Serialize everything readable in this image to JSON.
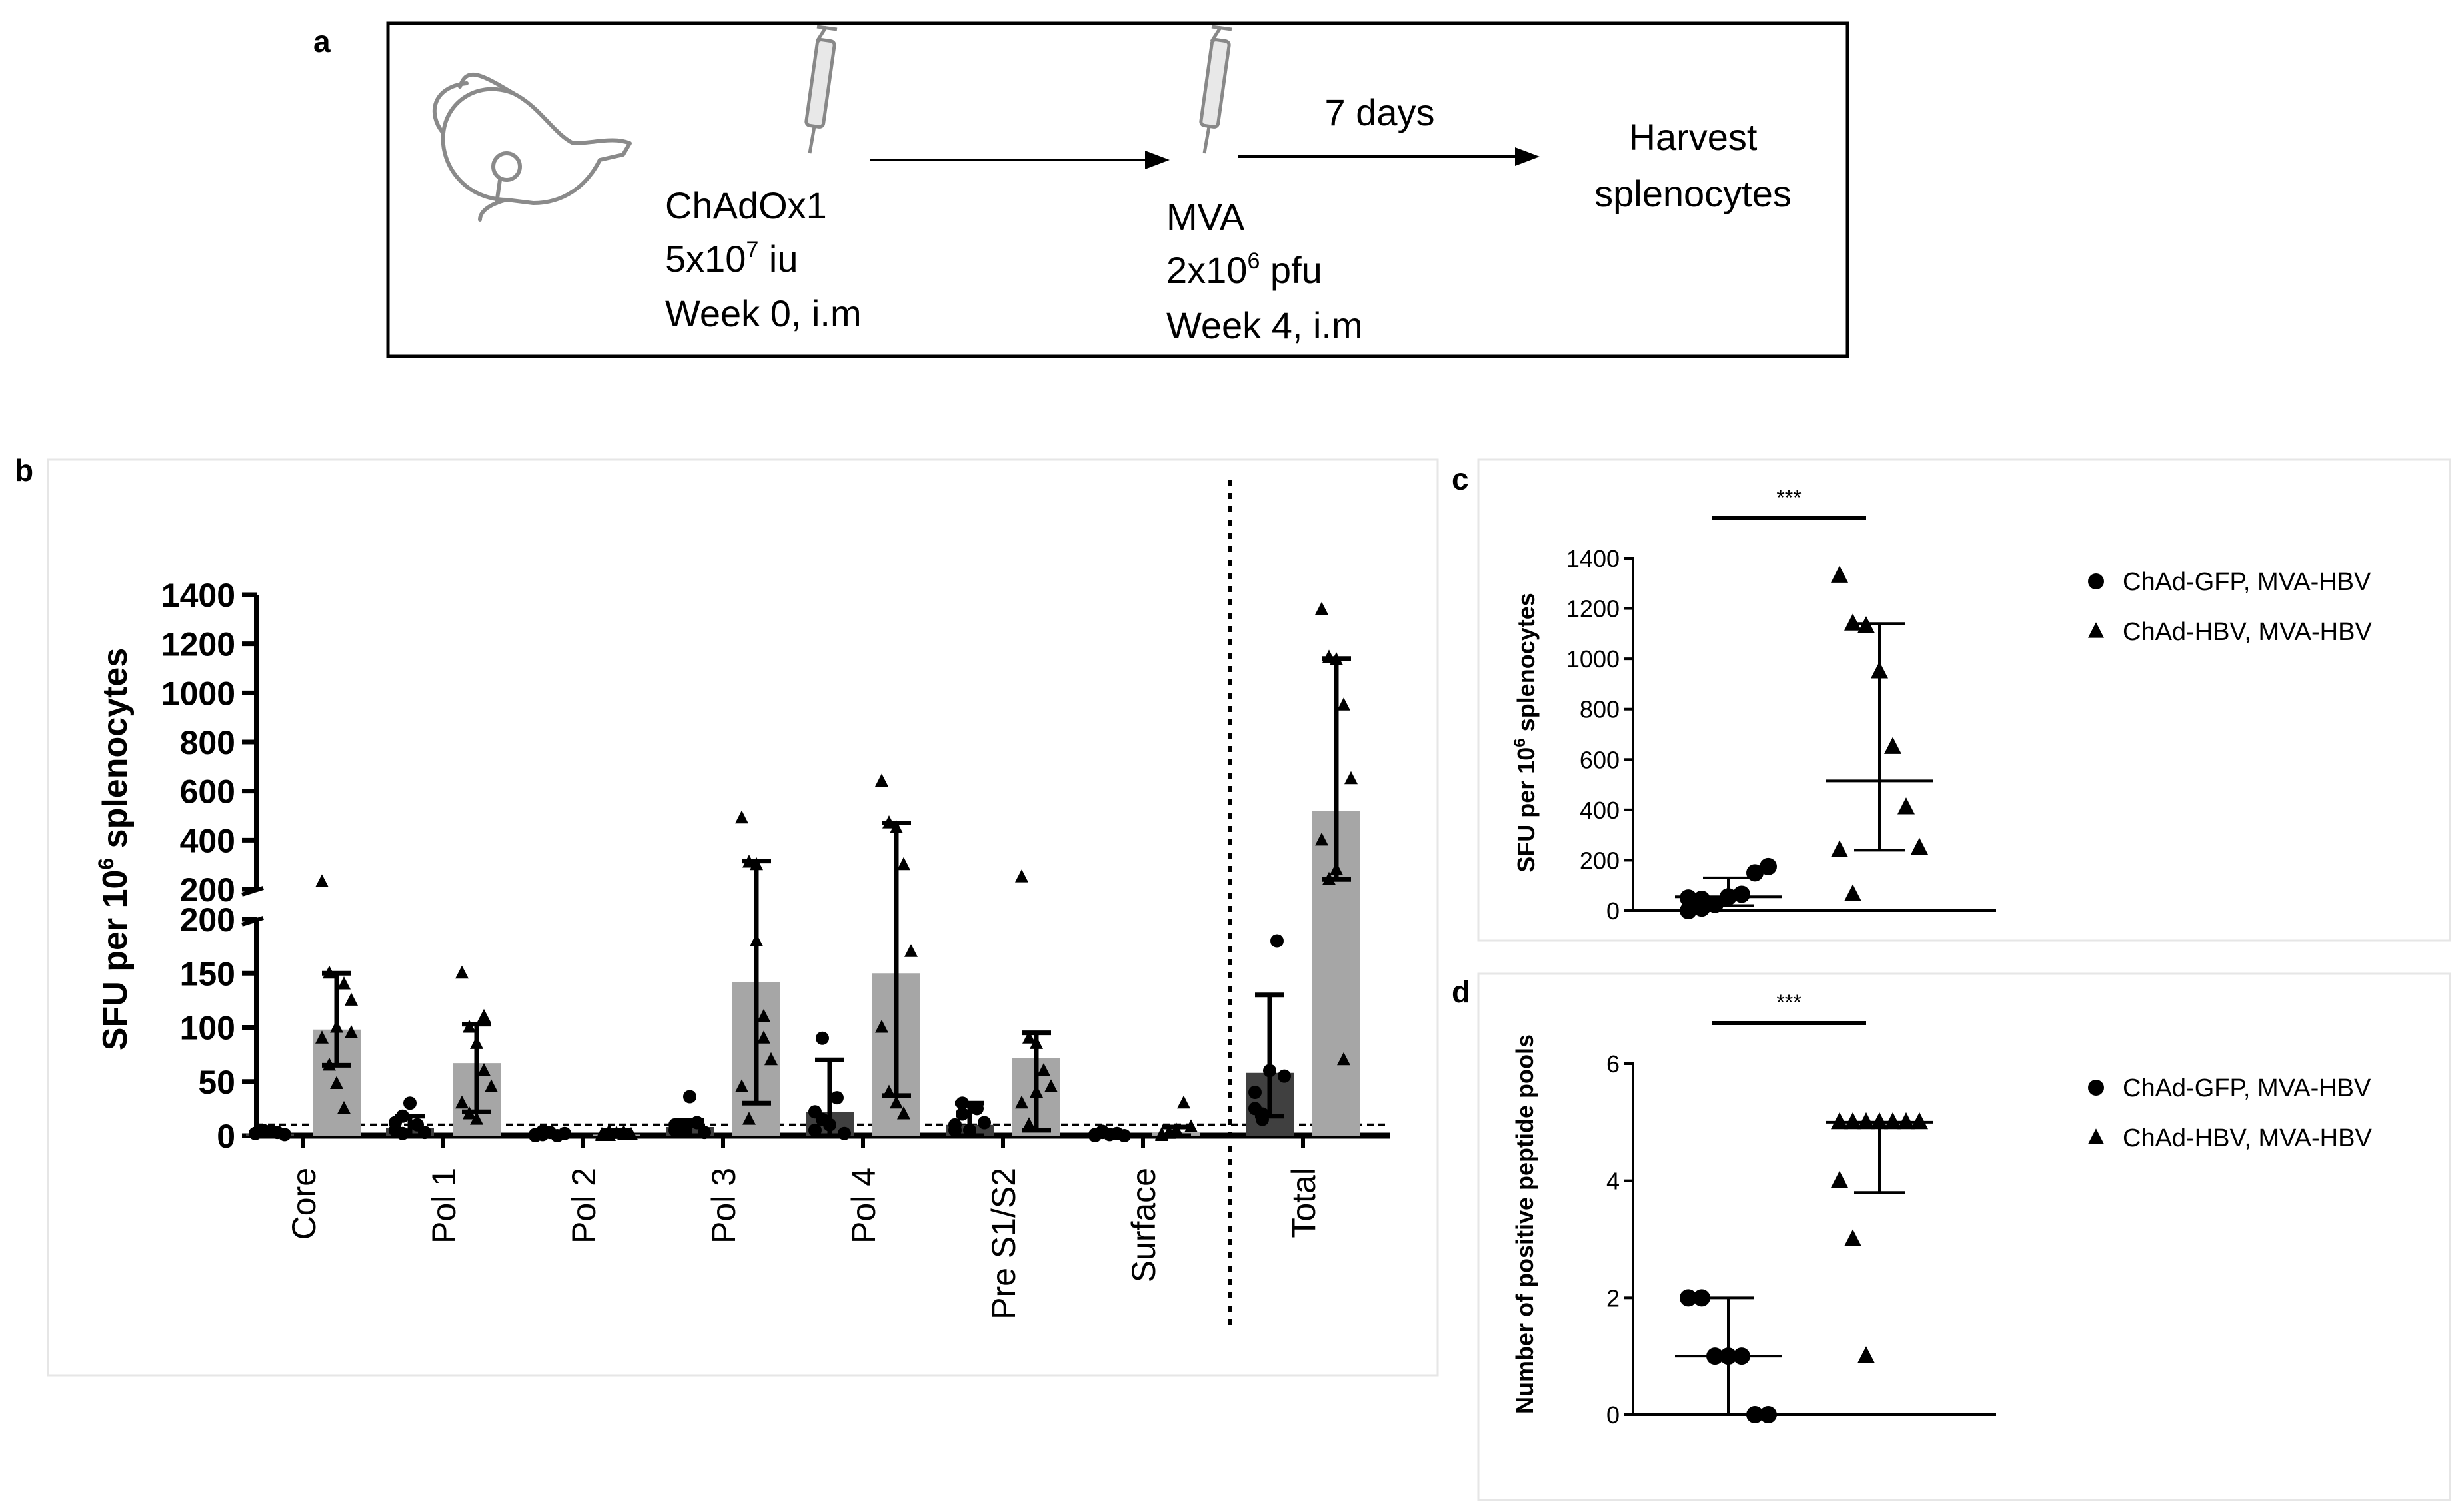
{
  "panel_a": {
    "letter": "a",
    "prime": {
      "vector": "ChAdOx1",
      "dose_base": "5x10",
      "dose_exp": "7",
      "dose_unit": " iu",
      "timing": "Week 0, i.m"
    },
    "boost": {
      "vector": "MVA",
      "dose_base": "2x10",
      "dose_exp": "6",
      "dose_unit": " pfu",
      "timing": "Week 4, i.m"
    },
    "interval": "7 days",
    "endpoint_line1": "Harvest",
    "endpoint_line2": "splenocytes"
  },
  "chart_data": [
    {
      "id": "b",
      "letter": "b",
      "type": "bar",
      "ylabel_pre": "SFU per 10",
      "ylabel_exp": "6",
      "ylabel_post": " splenocytes",
      "y_axis_broken": true,
      "ylim_lower": [
        0,
        200
      ],
      "ylim_upper": [
        200,
        1400
      ],
      "yticks_lower": [
        0,
        50,
        100,
        150,
        200
      ],
      "yticks_upper": [
        200,
        400,
        600,
        800,
        1000,
        1200,
        1400
      ],
      "threshold": 10,
      "categories": [
        "Core",
        "Pol 1",
        "Pol 2",
        "Pol 3",
        "Pol 4",
        "Pre S1/S2",
        "Surface",
        "Total"
      ],
      "series": [
        {
          "name": "ChAd-GFP, MVA-HBV",
          "marker": "circle",
          "color": "#404040",
          "bars": [
            2,
            7,
            0,
            8,
            22,
            10,
            0,
            58
          ],
          "err_low": [
            0,
            0,
            0,
            0,
            0,
            0,
            0,
            18
          ],
          "err_high": [
            5,
            18,
            3,
            14,
            70,
            30,
            3,
            130
          ],
          "points": [
            [
              2,
              5,
              4,
              3,
              1,
              2,
              5
            ],
            [
              5,
              18,
              30,
              10,
              3,
              12,
              2
            ],
            [
              0,
              1,
              3,
              0,
              2,
              1,
              4
            ],
            [
              5,
              8,
              36,
              12,
              3,
              10,
              6
            ],
            [
              5,
              90,
              10,
              35,
              2,
              22,
              15
            ],
            [
              10,
              30,
              5,
              25,
              12,
              5,
              20
            ],
            [
              0,
              3,
              1,
              2,
              0,
              1,
              4
            ],
            [
              25,
              20,
              60,
              180,
              55,
              40,
              15
            ]
          ]
        },
        {
          "name": "ChAd-HBV, MVA-HBV",
          "marker": "triangle",
          "color": "#a6a6a6",
          "bars": [
            98,
            67,
            1,
            142,
            150,
            72,
            3,
            520
          ],
          "err_low": [
            65,
            22,
            0,
            30,
            37,
            5,
            0,
            240
          ],
          "err_high": [
            150,
            103,
            5,
            315,
            470,
            95,
            8,
            1140
          ],
          "points": [
            [
              230,
              150,
              100,
              140,
              125,
              90,
              65,
              48,
              25,
              95
            ],
            [
              150,
              100,
              85,
              60,
              45,
              30,
              20,
              15,
              110
            ],
            [
              1,
              0,
              2,
              3,
              1,
              0,
              4,
              2,
              1
            ],
            [
              490,
              310,
              300,
              110,
              70,
              45,
              15,
              180,
              90
            ],
            [
              640,
              470,
              450,
              300,
              170,
              100,
              40,
              30,
              20
            ],
            [
              250,
              90,
              85,
              60,
              45,
              30,
              10,
              40
            ],
            [
              0,
              2,
              5,
              30,
              8,
              1,
              3
            ],
            [
              1340,
              1145,
              1135,
              950,
              650,
              400,
              240,
              280,
              70
            ]
          ]
        }
      ]
    },
    {
      "id": "c",
      "letter": "c",
      "type": "scatter",
      "ylabel_pre": "SFU per 10",
      "ylabel_exp": "6",
      "ylabel_post": " splenocytes",
      "ylim": [
        0,
        1400
      ],
      "yticks": [
        0,
        200,
        400,
        600,
        800,
        1000,
        1200,
        1400
      ],
      "significance": "***",
      "groups": [
        {
          "name": "ChAd-GFP, MVA-HBV",
          "marker": "circle",
          "median": 55,
          "q1": 20,
          "q3": 130,
          "points": [
            0,
            10,
            25,
            55,
            65,
            150,
            175,
            50,
            45
          ]
        },
        {
          "name": "ChAd-HBV, MVA-HBV",
          "marker": "triangle",
          "median": 515,
          "q1": 240,
          "q3": 1140,
          "points": [
            1330,
            1140,
            1130,
            950,
            650,
            410,
            250,
            240,
            65
          ]
        }
      ]
    },
    {
      "id": "d",
      "letter": "d",
      "type": "scatter",
      "ylabel": "Number of positive peptide pools",
      "ylim": [
        0,
        6
      ],
      "yticks": [
        0,
        2,
        4,
        6
      ],
      "significance": "***",
      "groups": [
        {
          "name": "ChAd-GFP, MVA-HBV",
          "marker": "circle",
          "median": 1,
          "q1": 0,
          "q3": 2,
          "points": [
            2,
            2,
            1,
            1,
            1,
            0,
            0
          ]
        },
        {
          "name": "ChAd-HBV, MVA-HBV",
          "marker": "triangle",
          "median": 5,
          "q1": 3.8,
          "q3": 5,
          "points": [
            5,
            5,
            5,
            5,
            5,
            5,
            5,
            4,
            3,
            1
          ]
        }
      ]
    }
  ]
}
